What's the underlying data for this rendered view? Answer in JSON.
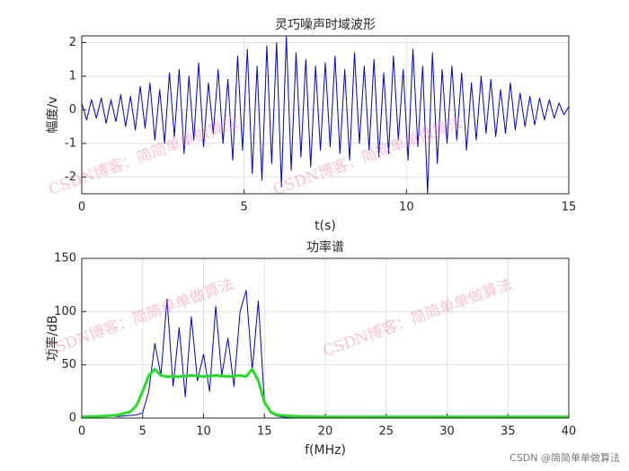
{
  "chart_data": [
    {
      "type": "line",
      "title": "灵巧噪声时域波形",
      "xlabel": "t(s)",
      "ylabel": "幅度/v",
      "color": "#0000cc",
      "grid": true,
      "xlim": [
        0,
        15
      ],
      "xticks": [
        0,
        5,
        10,
        15
      ],
      "ylim": [
        -2.5,
        2.2
      ],
      "yticks": [
        -2,
        -1,
        0,
        1,
        2
      ],
      "x": [
        0,
        0.15,
        0.3,
        0.45,
        0.6,
        0.75,
        0.9,
        1.05,
        1.2,
        1.35,
        1.5,
        1.65,
        1.8,
        1.95,
        2.1,
        2.25,
        2.4,
        2.55,
        2.7,
        2.85,
        3,
        3.15,
        3.3,
        3.45,
        3.6,
        3.75,
        3.9,
        4.05,
        4.2,
        4.35,
        4.5,
        4.65,
        4.8,
        4.95,
        5.1,
        5.25,
        5.4,
        5.55,
        5.7,
        5.85,
        6,
        6.15,
        6.3,
        6.45,
        6.6,
        6.75,
        6.9,
        7.05,
        7.2,
        7.35,
        7.5,
        7.65,
        7.8,
        7.95,
        8.1,
        8.25,
        8.4,
        8.55,
        8.7,
        8.85,
        9,
        9.15,
        9.3,
        9.45,
        9.6,
        9.75,
        9.9,
        10.05,
        10.2,
        10.35,
        10.5,
        10.65,
        10.8,
        10.95,
        11.1,
        11.25,
        11.4,
        11.55,
        11.7,
        11.85,
        12,
        12.15,
        12.3,
        12.45,
        12.6,
        12.75,
        12.9,
        13.05,
        13.2,
        13.35,
        13.5,
        13.65,
        13.8,
        13.95,
        14.1,
        14.25,
        14.4,
        14.55,
        14.7,
        14.85,
        15
      ],
      "values": [
        0.2,
        -0.3,
        0.3,
        -0.25,
        0.35,
        -0.4,
        0.3,
        -0.35,
        0.45,
        -0.5,
        0.4,
        -0.6,
        0.7,
        -0.55,
        0.8,
        -0.9,
        0.6,
        -1.0,
        1.1,
        -0.8,
        1.2,
        -1.3,
        1.0,
        -0.9,
        1.4,
        -1.1,
        0.8,
        -0.7,
        1.2,
        -1.0,
        0.9,
        -1.5,
        1.6,
        -1.2,
        1.8,
        -1.9,
        1.3,
        -2.1,
        1.9,
        -1.6,
        2.0,
        -2.3,
        2.2,
        -1.8,
        1.7,
        -1.4,
        1.5,
        -1.7,
        1.3,
        -1.2,
        1.4,
        -1.1,
        1.6,
        -1.3,
        1.2,
        -1.5,
        1.7,
        -1.0,
        1.3,
        -1.2,
        1.5,
        -1.4,
        1.1,
        -1.3,
        1.6,
        -0.9,
        1.2,
        -1.5,
        1.8,
        -1.1,
        1.3,
        -2.5,
        1.7,
        -1.6,
        1.2,
        -1.0,
        1.3,
        -0.9,
        1.1,
        -1.2,
        0.8,
        -0.9,
        1.0,
        -0.7,
        0.9,
        -0.8,
        0.6,
        -0.7,
        0.8,
        -0.6,
        0.5,
        -0.5,
        0.4,
        -0.45,
        0.35,
        -0.3,
        0.3,
        -0.25,
        0.2,
        -0.15,
        0.1
      ]
    },
    {
      "type": "line",
      "title": "功率谱",
      "xlabel": "f(MHz)",
      "ylabel": "功率/dB",
      "grid": true,
      "xlim": [
        0,
        40
      ],
      "xticks": [
        0,
        5,
        10,
        15,
        20,
        25,
        30,
        35,
        40
      ],
      "ylim": [
        0,
        150
      ],
      "yticks": [
        0,
        50,
        100,
        150
      ],
      "series": [
        {
          "color": "#0000cc",
          "width": 1,
          "x": [
            0,
            0.5,
            1,
            1.5,
            2,
            2.5,
            3,
            3.5,
            4,
            4.5,
            5,
            5.5,
            6,
            6.5,
            7,
            7.5,
            8,
            8.5,
            9,
            9.5,
            10,
            10.5,
            11,
            11.5,
            12,
            12.5,
            13,
            13.5,
            14,
            14.5,
            15,
            15.5,
            16,
            16.5,
            17,
            17.5,
            18,
            18.5,
            19,
            19.5,
            20,
            20.5,
            21,
            21.5,
            22,
            22.5,
            23,
            23.5,
            24,
            24.5,
            25,
            25.5,
            26,
            26.5,
            27,
            27.5,
            28,
            28.5,
            29,
            29.5,
            30,
            30.5,
            31,
            31.5,
            32,
            32.5,
            33,
            33.5,
            34,
            34.5,
            35,
            35.5,
            36,
            36.5,
            37,
            37.5,
            38,
            38.5,
            39,
            39.5,
            40
          ],
          "values": [
            1,
            1,
            1.5,
            1,
            1.5,
            2,
            1.5,
            2,
            2.5,
            3,
            5,
            25,
            70,
            40,
            112,
            30,
            85,
            20,
            95,
            35,
            60,
            25,
            105,
            40,
            75,
            30,
            100,
            120,
            45,
            110,
            15,
            5,
            2,
            1,
            0.5,
            1,
            0.5,
            1,
            0.5,
            1,
            0.5,
            1,
            0.5,
            1,
            0.5,
            1,
            0.5,
            1,
            0.5,
            1,
            0.5,
            1,
            0.5,
            1,
            0.5,
            1,
            0.5,
            1,
            0.5,
            1,
            0.5,
            1,
            0.5,
            1,
            0.5,
            1,
            0.5,
            1,
            0.5,
            1,
            0.5,
            1,
            0.5,
            1,
            0.5,
            1,
            0.5,
            1,
            0.5,
            1,
            0.5
          ]
        },
        {
          "color": "#22dd22",
          "width": 3,
          "x": [
            0,
            1,
            2,
            3,
            4,
            4.5,
            5,
            5.5,
            6,
            6.5,
            7,
            8,
            9,
            10,
            11,
            12,
            13,
            13.5,
            14,
            14.5,
            15,
            15.5,
            16,
            17,
            18,
            20,
            25,
            30,
            35,
            40
          ],
          "values": [
            1,
            1.5,
            2,
            3,
            6,
            12,
            25,
            40,
            46,
            40,
            39,
            39,
            40,
            39,
            40,
            39,
            40,
            39,
            46,
            35,
            15,
            6,
            3,
            2,
            1.5,
            1,
            1,
            1,
            1,
            1
          ]
        }
      ]
    }
  ],
  "watermarks": [
    "CSDN博客：简简单单做算法",
    "CSDN博客：简简单单做算法",
    "CSDN博客：简简单单做算法",
    "CSDN博客：简简单单做算法"
  ],
  "footer": "CSDN @简简单单做算法"
}
